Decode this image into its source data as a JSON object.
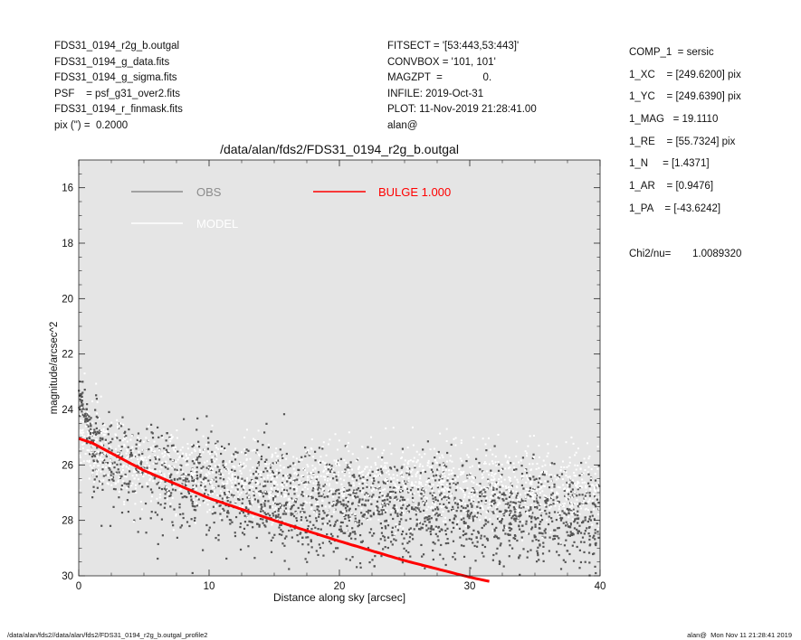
{
  "header": {
    "left_lines": [
      "FDS31_0194_r2g_b.outgal",
      "FDS31_0194_g_data.fits",
      "FDS31_0194_g_sigma.fits",
      "PSF    = psf_g31_over2.fits",
      "FDS31_0194_r_finmask.fits",
      "pix (\") =  0.2000"
    ],
    "center_lines": [
      "FITSECT = '[53:443,53:443]'",
      "CONVBOX = '101, 101'",
      "MAGZPT  =              0.",
      "INFILE: 2019-Oct-31",
      "PLOT: 11-Nov-2019 21:28:41.00",
      "alan@"
    ]
  },
  "params": {
    "lines": [
      "COMP_1  = sersic",
      "1_XC    = [249.6200] pix",
      "1_YC    = [249.6390] pix",
      "1_MAG   = 19.1110",
      "1_RE    = [55.7324] pix",
      "1_N     = [1.4371]",
      "1_AR    = [0.9476]",
      "1_PA    = [-43.6242]"
    ],
    "chi2_label": "Chi2/nu=",
    "chi2_value": "1.0089320"
  },
  "footer": {
    "left": "/data/alan/fds2//data/alan/fds2/FDS31_0194_r2g_b.outgal_profile2",
    "right": "alan@  Mon Nov 11 21:28:41 2019"
  },
  "colors": {
    "plot_bg": "#e5e5e5",
    "obs": "#555555",
    "model": "#ffffff",
    "bulge": "#ff0000",
    "legend_obs": "#8c8c8c"
  },
  "chart_data": {
    "type": "scatter",
    "title": "/data/alan/fds2/FDS31_0194_r2g_b.outgal",
    "xlabel": "Distance along sky [arcsec]",
    "ylabel": "magnitude/arcsec^2",
    "xlim": [
      0,
      40
    ],
    "ylim": [
      30,
      15
    ],
    "y_inverted": true,
    "xticks": [
      0,
      10,
      20,
      30,
      40
    ],
    "yticks": [
      16,
      18,
      20,
      22,
      24,
      26,
      28,
      30
    ],
    "legend": [
      {
        "name": "OBS",
        "color": "#8c8c8c"
      },
      {
        "name": "MODEL",
        "color": "#ffffff"
      },
      {
        "name": "BULGE  1.000",
        "color": "#ff0000"
      }
    ],
    "series": [
      {
        "name": "OBS",
        "type": "scatter",
        "x": [
          0.3,
          0.5,
          0.7,
          1.0,
          2,
          4,
          6,
          8,
          10,
          12,
          15,
          18,
          20,
          22,
          25,
          28,
          30,
          33,
          36,
          38,
          40
        ],
        "y": [
          23.7,
          24.2,
          24.6,
          25.0,
          25.7,
          26.1,
          26.4,
          26.6,
          26.8,
          27.0,
          27.2,
          27.3,
          27.4,
          27.5,
          27.6,
          27.7,
          27.7,
          27.8,
          27.8,
          27.9,
          27.9
        ],
        "scatter_sigma": 0.9
      },
      {
        "name": "MODEL",
        "type": "scatter",
        "x": [
          0,
          2,
          5,
          10,
          15,
          20,
          25,
          30,
          35,
          40
        ],
        "y": [
          25.0,
          25.6,
          26.0,
          26.3,
          26.5,
          26.6,
          26.7,
          26.7,
          26.8,
          26.8
        ],
        "scatter_sigma": 0.7
      },
      {
        "name": "BULGE  1.000",
        "type": "line",
        "x": [
          0,
          1,
          2,
          5,
          10,
          15,
          20,
          25,
          30,
          31.5
        ],
        "y": [
          25.05,
          25.2,
          25.45,
          26.2,
          27.2,
          28.0,
          28.75,
          29.45,
          30.05,
          30.2
        ]
      }
    ]
  }
}
